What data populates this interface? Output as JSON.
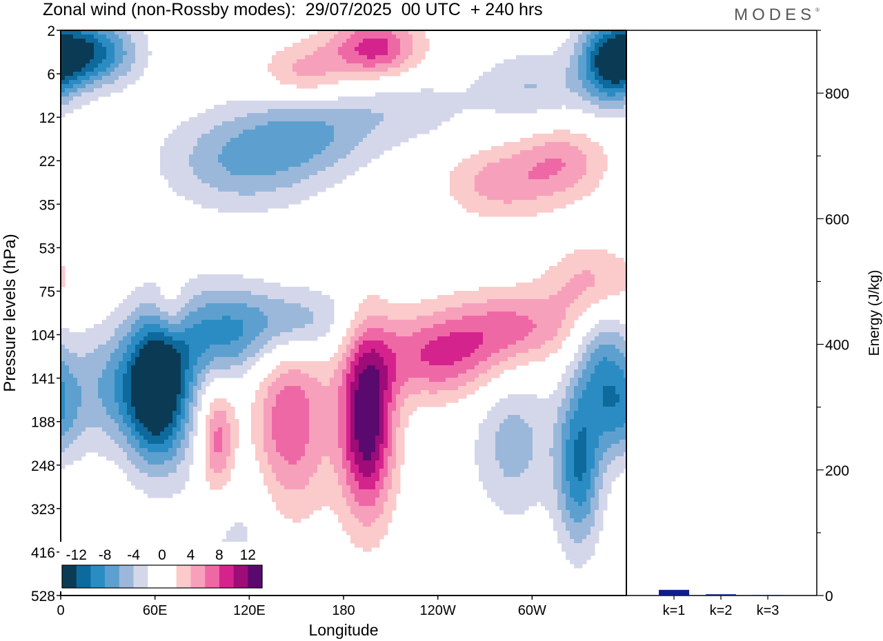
{
  "title": "Zonal wind (non-Rossby modes):  29/07/2025  00 UTC  + 240 hrs",
  "logo": "MODES",
  "logo_mark": "®",
  "colors": {
    "neg": [
      "#0b3a55",
      "#0e6a9c",
      "#2b8cc3",
      "#5da0cf",
      "#9bb8da",
      "#d4d7ea"
    ],
    "pos": [
      "#ffffff",
      "#fbcaca",
      "#f7a0bb",
      "#ef68a6",
      "#d5238e",
      "#9e0c78",
      "#5a0a6e"
    ],
    "bar": "#0e1f8a"
  },
  "chart_data": [
    {
      "type": "heatmap",
      "name": "zonal-wind-hovmoller",
      "xlabel": "Longitude",
      "ylabel": "Pressure levels (hPa)",
      "x_ticks": [
        "0",
        "60E",
        "120E",
        "180",
        "120W",
        "60W"
      ],
      "y_ticks": [
        "2",
        "6",
        "12",
        "22",
        "35",
        "53",
        "75",
        "104",
        "141",
        "188",
        "248",
        "323",
        "416",
        "528"
      ],
      "colorbar": {
        "labels": [
          "-12",
          "-8",
          "-4",
          "0",
          "4",
          "8",
          "12"
        ],
        "levels": [
          -14,
          -12,
          -10,
          -8,
          -6,
          -4,
          -2,
          2,
          4,
          6,
          8,
          10,
          12,
          14
        ]
      },
      "features": [
        {
          "lon": 62,
          "lev": 8.3,
          "val": -14,
          "dlon": 14,
          "dlev": 1.2
        },
        {
          "lon": 35,
          "lev": 8.2,
          "val": -6,
          "dlon": 25,
          "dlev": 1.0
        },
        {
          "lon": 100,
          "lev": 7.0,
          "val": -8,
          "dlon": 25,
          "dlev": 0.8
        },
        {
          "lon": 150,
          "lev": 6.7,
          "val": -6,
          "dlon": 25,
          "dlev": 0.6
        },
        {
          "lon": 110,
          "lev": 11.3,
          "val": -3,
          "dlon": 20,
          "dlev": 1.8
        },
        {
          "lon": 15,
          "lev": 0.5,
          "val": -12,
          "dlon": 22,
          "dlev": 0.55
        },
        {
          "lon": 350,
          "lev": 0.8,
          "val": -10,
          "dlon": 14,
          "dlev": 0.7
        },
        {
          "lon": 115,
          "lev": 3.0,
          "val": -6,
          "dlon": 35,
          "dlev": 0.8
        },
        {
          "lon": 160,
          "lev": 2.3,
          "val": -5,
          "dlon": 30,
          "dlev": 0.7
        },
        {
          "lon": 220,
          "lev": 1.8,
          "val": -3,
          "dlon": 30,
          "dlev": 0.6
        },
        {
          "lon": 300,
          "lev": 1.3,
          "val": -4,
          "dlon": 25,
          "dlev": 0.6
        },
        {
          "lon": 330,
          "lev": 10.0,
          "val": -10,
          "dlon": 10,
          "dlev": 1.3
        },
        {
          "lon": 288,
          "lev": 9.5,
          "val": -5,
          "dlon": 18,
          "dlev": 1.2
        },
        {
          "lon": 345,
          "lev": 7.5,
          "val": -6,
          "dlon": 12,
          "dlev": 1.0
        },
        {
          "lon": 355,
          "lev": 8.8,
          "val": -6,
          "dlon": 12,
          "dlev": 0.8
        },
        {
          "lon": 100,
          "lev": 9.5,
          "val": 8,
          "dlon": 8,
          "dlev": 1.0
        },
        {
          "lon": 145,
          "lev": 9.0,
          "val": 8,
          "dlon": 18,
          "dlev": 1.5
        },
        {
          "lon": 195,
          "lev": 9.0,
          "val": 14,
          "dlon": 12,
          "dlev": 1.5
        },
        {
          "lon": 240,
          "lev": 7.5,
          "val": 8,
          "dlon": 30,
          "dlev": 0.7
        },
        {
          "lon": 290,
          "lev": 6.8,
          "val": 6,
          "dlon": 30,
          "dlev": 0.6
        },
        {
          "lon": 340,
          "lev": 5.8,
          "val": 5,
          "dlon": 20,
          "dlev": 0.6
        },
        {
          "lon": 200,
          "lev": 0.4,
          "val": 9,
          "dlon": 20,
          "dlev": 0.5
        },
        {
          "lon": 155,
          "lev": 1.0,
          "val": 5,
          "dlon": 20,
          "dlev": 0.5
        },
        {
          "lon": 280,
          "lev": 3.5,
          "val": 5,
          "dlon": 25,
          "dlev": 0.6
        },
        {
          "lon": 320,
          "lev": 3.0,
          "val": 5,
          "dlon": 20,
          "dlev": 0.6
        },
        {
          "lon": 70,
          "lev": 6.5,
          "val": 4,
          "dlon": 8,
          "dlev": 0.5
        }
      ]
    },
    {
      "type": "bar",
      "name": "energy-by-wavenumber",
      "categories": [
        "k=1",
        "k=2",
        "k=3"
      ],
      "values": [
        9,
        2,
        1
      ],
      "ylabel": "Energy (J/kg)",
      "ylim": [
        0,
        900
      ],
      "y_ticks": [
        "0",
        "200",
        "400",
        "600",
        "800"
      ]
    }
  ]
}
